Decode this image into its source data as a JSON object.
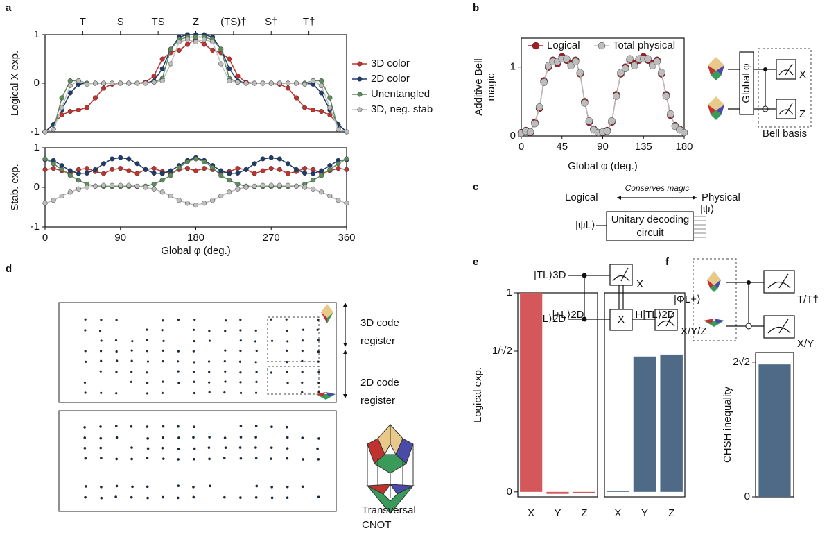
{
  "panel_labels": [
    "a",
    "b",
    "c",
    "d",
    "e",
    "f"
  ],
  "diagrams": {
    "b": {
      "gate": "Global φ",
      "outputs": [
        "X",
        "Z"
      ],
      "caption": "Bell basis"
    },
    "c": {
      "left": "Logical",
      "arrow": "Conserves magic",
      "right": "Physical",
      "input": "|ψL⟩",
      "box": [
        "Unitary decoding",
        "circuit"
      ],
      "output": "|ψ⟩"
    },
    "d": {
      "register_3d": [
        "3D code",
        "register"
      ],
      "register_2d": [
        "2D code",
        "register"
      ],
      "operation": [
        "Transversal",
        "CNOT"
      ]
    },
    "e": {
      "inputs": [
        "|TL⟩3D",
        "|+L⟩2D"
      ],
      "outputs": [
        "X",
        "X/Y/Z"
      ],
      "gate": "X"
    },
    "f": {
      "input": "|ΦL+⟩",
      "outputs": [
        "T/T†",
        "X/Y"
      ]
    }
  },
  "chart_data": [
    {
      "type": "line",
      "ylabel": "Logical X exp.",
      "legend": "right-outside",
      "x": [
        0,
        10,
        20,
        30,
        40,
        50,
        60,
        70,
        80,
        90,
        100,
        110,
        120,
        130,
        140,
        150,
        160,
        170,
        180,
        190,
        200,
        210,
        220,
        230,
        240,
        250,
        260,
        270,
        280,
        290,
        300,
        310,
        320,
        330,
        340,
        350,
        360
      ],
      "xlim": [
        0,
        360
      ],
      "ylim": [
        -1,
        1
      ],
      "yticks": [
        -1,
        0,
        1
      ],
      "top_xticks": [
        {
          "value": 45,
          "label": "T"
        },
        {
          "value": 90,
          "label": "S"
        },
        {
          "value": 135,
          "label": "TS"
        },
        {
          "value": 180,
          "label": "Z"
        },
        {
          "value": 225,
          "label": "(TS)†"
        },
        {
          "value": 270,
          "label": "S†"
        },
        {
          "value": 315,
          "label": "T†"
        }
      ],
      "series": [
        {
          "name": "3D color",
          "color": "#c0322d",
          "values": [
            -1,
            -0.85,
            -0.65,
            -0.58,
            -0.55,
            -0.5,
            -0.3,
            -0.1,
            -0.02,
            0,
            0,
            0,
            0.02,
            0.15,
            0.5,
            0.63,
            0.68,
            0.8,
            0.9,
            0.8,
            0.68,
            0.63,
            0.5,
            0.15,
            0.02,
            0,
            0,
            0,
            -0.02,
            -0.1,
            -0.3,
            -0.5,
            -0.55,
            -0.58,
            -0.65,
            -0.85,
            -1
          ]
        },
        {
          "name": "2D color",
          "color": "#1d3b6b",
          "values": [
            -1,
            -0.85,
            -0.55,
            -0.2,
            -0.02,
            0,
            0,
            0,
            0,
            0,
            0,
            0,
            0,
            0.05,
            0.3,
            0.7,
            0.95,
            1,
            1,
            1,
            0.95,
            0.7,
            0.3,
            0.05,
            0,
            0,
            0,
            0,
            0,
            0,
            0,
            0,
            -0.02,
            -0.2,
            -0.55,
            -0.85,
            -1
          ]
        },
        {
          "name": "Unentangled",
          "color": "#5f8c5c",
          "values": [
            -1,
            -0.95,
            -0.3,
            0.05,
            0.05,
            0,
            0,
            0,
            0,
            0,
            0,
            0,
            0,
            0.02,
            0.1,
            0.7,
            0.9,
            0.95,
            0.95,
            0.95,
            0.9,
            0.7,
            0.1,
            0.02,
            0,
            0,
            0,
            0,
            0,
            0,
            0,
            0,
            0.05,
            0.05,
            -0.3,
            -0.95,
            -1
          ]
        },
        {
          "name": "3D, neg. stab",
          "color": "#bdbdbd",
          "values": [
            -1,
            -0.95,
            -0.5,
            -0.05,
            0.05,
            -0.02,
            0,
            0,
            0,
            0,
            0,
            0,
            0,
            0.02,
            0.05,
            0.4,
            0.85,
            0.9,
            0.85,
            0.9,
            0.85,
            0.4,
            0.05,
            0.02,
            0,
            0,
            0,
            0,
            0,
            0,
            0,
            -0.02,
            0.05,
            -0.05,
            -0.5,
            -0.95,
            -1
          ]
        }
      ]
    },
    {
      "type": "line",
      "ylabel": "Stab. exp.",
      "xlabel": "Global φ (deg.)",
      "x": [
        0,
        10,
        20,
        30,
        40,
        50,
        60,
        70,
        80,
        90,
        100,
        110,
        120,
        130,
        140,
        150,
        160,
        170,
        180,
        190,
        200,
        210,
        220,
        230,
        240,
        250,
        260,
        270,
        280,
        290,
        300,
        310,
        320,
        330,
        340,
        350,
        360
      ],
      "xlim": [
        0,
        360
      ],
      "ylim": [
        -1,
        1
      ],
      "xticks": [
        0,
        90,
        180,
        270,
        360
      ],
      "yticks": [
        -1,
        0,
        1
      ],
      "series": [
        {
          "name": "3D color",
          "color": "#c0322d",
          "values": [
            0.45,
            0.48,
            0.42,
            0.35,
            0.45,
            0.48,
            0.4,
            0.35,
            0.45,
            0.48,
            0.42,
            0.35,
            0.45,
            0.48,
            0.4,
            0.35,
            0.45,
            0.48,
            0.42,
            0.48,
            0.45,
            0.35,
            0.4,
            0.48,
            0.45,
            0.35,
            0.42,
            0.48,
            0.45,
            0.35,
            0.4,
            0.48,
            0.45,
            0.35,
            0.42,
            0.48,
            0.45
          ]
        },
        {
          "name": "2D color",
          "color": "#1d3b6b",
          "values": [
            0.7,
            0.68,
            0.55,
            0.42,
            0.35,
            0.36,
            0.45,
            0.6,
            0.72,
            0.75,
            0.72,
            0.6,
            0.45,
            0.36,
            0.35,
            0.42,
            0.55,
            0.68,
            0.75,
            0.68,
            0.55,
            0.42,
            0.35,
            0.36,
            0.45,
            0.6,
            0.72,
            0.75,
            0.72,
            0.6,
            0.45,
            0.36,
            0.35,
            0.42,
            0.55,
            0.68,
            0.7
          ]
        },
        {
          "name": "Unentangled",
          "color": "#5f8c5c",
          "values": [
            0.72,
            0.6,
            0.45,
            0.3,
            0.18,
            0.08,
            0.03,
            0.02,
            0.02,
            0.02,
            0.02,
            0.02,
            0.03,
            0.08,
            0.18,
            0.3,
            0.5,
            0.65,
            0.72,
            0.65,
            0.5,
            0.3,
            0.18,
            0.08,
            0.03,
            0.02,
            0.02,
            0.02,
            0.02,
            0.02,
            0.03,
            0.08,
            0.18,
            0.3,
            0.45,
            0.6,
            0.72
          ]
        },
        {
          "name": "3D, neg. stab",
          "color": "#bdbdbd",
          "values": [
            -0.4,
            -0.33,
            -0.22,
            -0.12,
            -0.04,
            0,
            0.03,
            0.05,
            0.05,
            0.05,
            0.05,
            0.03,
            0,
            -0.04,
            -0.12,
            -0.22,
            -0.33,
            -0.4,
            -0.45,
            -0.4,
            -0.33,
            -0.22,
            -0.12,
            -0.04,
            0,
            0.03,
            0.05,
            0.05,
            0.05,
            0.05,
            0.03,
            0,
            -0.04,
            -0.12,
            -0.22,
            -0.33,
            -0.4
          ]
        }
      ]
    },
    {
      "type": "line",
      "ylabel": [
        "Additive Bell",
        "magic"
      ],
      "xlabel": "Global φ (deg.)",
      "legend": "top",
      "x": [
        0,
        5,
        10,
        15,
        20,
        25,
        30,
        35,
        40,
        45,
        50,
        55,
        60,
        65,
        70,
        75,
        80,
        85,
        90,
        95,
        100,
        105,
        110,
        115,
        120,
        125,
        130,
        135,
        140,
        145,
        150,
        155,
        160,
        165,
        170,
        175,
        180
      ],
      "xlim": [
        0,
        180
      ],
      "ylim": [
        0,
        1.42
      ],
      "xticks": [
        0,
        45,
        90,
        135,
        180
      ],
      "yticks": [
        0,
        1
      ],
      "series": [
        {
          "name": "Logical",
          "color": "#a51d24",
          "values": [
            0.05,
            0.08,
            0.05,
            0.2,
            0.4,
            0.8,
            1.0,
            1.1,
            1.05,
            1.15,
            1.1,
            1.05,
            1.1,
            0.9,
            0.5,
            0.2,
            0.1,
            0.05,
            0.05,
            0.08,
            0.2,
            0.6,
            0.9,
            1.0,
            1.1,
            1.05,
            1.1,
            1.15,
            1.1,
            1.05,
            1.1,
            0.9,
            0.6,
            0.3,
            0.15,
            0.1,
            0.05
          ]
        },
        {
          "name": "Total physical",
          "color": "#bdbdbd",
          "values": [
            0.04,
            0.07,
            0.06,
            0.18,
            0.42,
            0.78,
            1.02,
            1.08,
            1.08,
            1.12,
            1.12,
            1.02,
            1.08,
            0.92,
            0.48,
            0.22,
            0.09,
            0.05,
            0.06,
            0.07,
            0.22,
            0.58,
            0.92,
            0.98,
            1.12,
            1.02,
            1.12,
            1.12,
            1.12,
            1.02,
            1.08,
            0.92,
            0.58,
            0.32,
            0.14,
            0.09,
            0.05
          ]
        }
      ]
    },
    {
      "type": "bar",
      "title": "|+L⟩2D",
      "ylabel": "Logical exp.",
      "color": "#d4575a",
      "categories": [
        "X",
        "Y",
        "Z"
      ],
      "values": [
        1.0,
        -0.01,
        -0.005
      ],
      "ylim": [
        -0.025,
        1.0
      ],
      "yticks": [
        0,
        {
          "value": 0.7071,
          "label": "1/√2"
        },
        1
      ]
    },
    {
      "type": "bar",
      "title": "H|TL⟩2D",
      "color": "#4f6a86",
      "categories": [
        "X",
        "Y",
        "Z"
      ],
      "values": [
        0.005,
        0.68,
        0.69
      ],
      "ylim": [
        -0.025,
        1.0
      ]
    },
    {
      "type": "bar",
      "ylabel": "CHSH inequality",
      "color": "#4f6a86",
      "categories": [
        null
      ],
      "values": [
        2.78
      ],
      "ylim": [
        0,
        3.03
      ],
      "yticks": [
        0,
        {
          "value": 2.8284,
          "label": "2√2"
        }
      ]
    }
  ]
}
